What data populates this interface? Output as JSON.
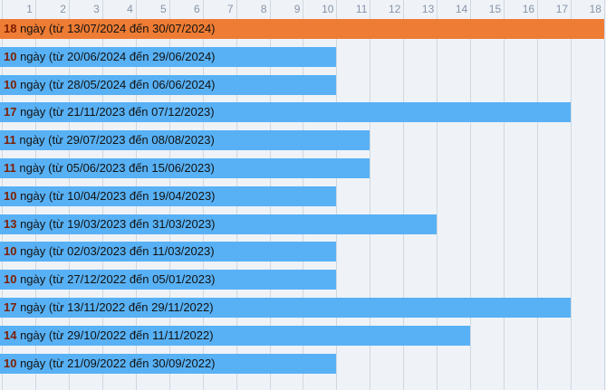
{
  "chart_data": {
    "type": "bar",
    "orientation": "horizontal",
    "unit_word": "ngày",
    "x_axis": {
      "ticks": [
        "1",
        "2",
        "3",
        "4",
        "5",
        "6",
        "7",
        "8",
        "9",
        "10",
        "11",
        "12",
        "13",
        "14",
        "15",
        "16",
        "17",
        "18"
      ],
      "min": 0,
      "max": 18
    },
    "legend": "none",
    "grid": "vertical-only",
    "bars": [
      {
        "value": 18,
        "value_text": "18",
        "label_suffix": " ngày (từ 13/07/2024 đến 30/07/2024)",
        "highlight": true
      },
      {
        "value": 10,
        "value_text": "10",
        "label_suffix": " ngày (từ 20/06/2024 đến 29/06/2024)",
        "highlight": false
      },
      {
        "value": 10,
        "value_text": "10",
        "label_suffix": " ngày (từ 28/05/2024 đến 06/06/2024)",
        "highlight": false
      },
      {
        "value": 17,
        "value_text": "17",
        "label_suffix": " ngày (từ 21/11/2023 đến 07/12/2023)",
        "highlight": false
      },
      {
        "value": 11,
        "value_text": "11",
        "label_suffix": " ngày (từ 29/07/2023 đến 08/08/2023)",
        "highlight": false
      },
      {
        "value": 11,
        "value_text": "11",
        "label_suffix": " ngày (từ 05/06/2023 đến 15/06/2023)",
        "highlight": false
      },
      {
        "value": 10,
        "value_text": "10",
        "label_suffix": " ngày (từ 10/04/2023 đến 19/04/2023)",
        "highlight": false
      },
      {
        "value": 13,
        "value_text": "13",
        "label_suffix": " ngày (từ 19/03/2023 đến 31/03/2023)",
        "highlight": false
      },
      {
        "value": 10,
        "value_text": "10",
        "label_suffix": " ngày (từ 02/03/2023 đến 11/03/2023)",
        "highlight": false
      },
      {
        "value": 10,
        "value_text": "10",
        "label_suffix": " ngày (từ 27/12/2022 đến 05/01/2023)",
        "highlight": false
      },
      {
        "value": 17,
        "value_text": "17",
        "label_suffix": " ngày (từ 13/11/2022 đến 29/11/2022)",
        "highlight": false
      },
      {
        "value": 14,
        "value_text": "14",
        "label_suffix": " ngày (từ 29/10/2022 đến 11/11/2022)",
        "highlight": false
      },
      {
        "value": 10,
        "value_text": "10",
        "label_suffix": " ngày (từ 21/09/2022 đến 30/09/2022)",
        "highlight": false
      }
    ],
    "colors": {
      "bar_blue": "#58b1f5",
      "bar_orange": "#ee7c34",
      "background": "#eff3f7",
      "gridline": "#cfd7e0",
      "axis_text": "#8793a6",
      "value_text": "#7e1e04",
      "label_text": "#121212"
    }
  }
}
